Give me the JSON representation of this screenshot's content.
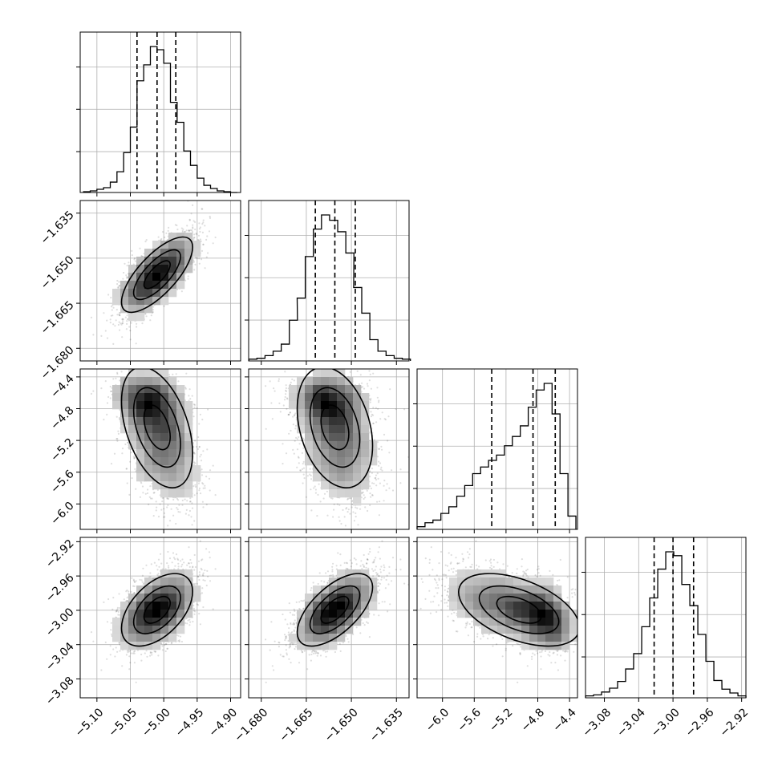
{
  "chart_data": {
    "type": "corner",
    "parameters": [
      {
        "histogram_ticks": [],
        "tick_labels": [
          "−5.10",
          "−5.05",
          "−5.00",
          "−4.95",
          "−4.90"
        ],
        "tick_values": [
          -5.1,
          -5.05,
          -5.0,
          -4.95,
          -4.9
        ],
        "range": [
          -5.125,
          -4.885
        ],
        "mean": -5.01,
        "sd": 0.028,
        "quantiles": [
          -5.04,
          -5.01,
          -4.982
        ],
        "hist_centers": [
          -5.115,
          -5.105,
          -5.095,
          -5.085,
          -5.075,
          -5.065,
          -5.055,
          -5.045,
          -5.035,
          -5.025,
          -5.015,
          -5.005,
          -4.995,
          -4.985,
          -4.975,
          -4.965,
          -4.955,
          -4.945,
          -4.935,
          -4.925,
          -4.915,
          -4.905,
          -4.895
        ],
        "hist_counts": [
          1,
          2,
          4,
          6,
          13,
          26,
          50,
          82,
          140,
          160,
          183,
          179,
          162,
          113,
          88,
          52,
          34,
          18,
          9,
          5,
          2,
          1,
          0
        ]
      },
      {
        "tick_labels": [
          "−1.680",
          "−1.665",
          "−1.650",
          "−1.635"
        ],
        "tick_values": [
          -1.68,
          -1.665,
          -1.65,
          -1.635
        ],
        "range": [
          -1.6842,
          -1.6308
        ],
        "mean": -1.6555,
        "sd": 0.0065,
        "quantiles": [
          -1.662,
          -1.6555,
          -1.6487
        ],
        "hist_centers": [
          -1.6828,
          -1.6801,
          -1.6774,
          -1.6747,
          -1.672,
          -1.6693,
          -1.6667,
          -1.664,
          -1.6613,
          -1.6586,
          -1.6559,
          -1.6532,
          -1.6505,
          -1.6479,
          -1.6452,
          -1.6425,
          -1.6398,
          -1.6371,
          -1.6344,
          -1.6317
        ],
        "hist_counts": [
          2,
          3,
          6,
          11,
          19,
          46,
          71,
          118,
          149,
          165,
          159,
          146,
          122,
          83,
          54,
          24,
          11,
          6,
          3,
          2
        ]
      },
      {
        "tick_labels": [
          "−6.0",
          "−5.6",
          "−5.2",
          "−4.8",
          "−4.4"
        ],
        "tick_values": [
          -6.0,
          -5.6,
          -5.2,
          -4.8,
          -4.4
        ],
        "range": [
          -6.32,
          -4.3
        ],
        "quantiles": [
          -5.38,
          -4.86,
          -4.58
        ],
        "hist_centers": [
          -6.27,
          -6.17,
          -6.07,
          -5.97,
          -5.87,
          -5.77,
          -5.67,
          -5.57,
          -5.47,
          -5.37,
          -5.27,
          -5.17,
          -5.07,
          -4.97,
          -4.87,
          -4.77,
          -4.67,
          -4.57,
          -4.47,
          -4.37
        ],
        "hist_counts": [
          2,
          5,
          7,
          12,
          17,
          25,
          33,
          42,
          47,
          52,
          56,
          63,
          70,
          78,
          92,
          105,
          110,
          87,
          42,
          10
        ]
      },
      {
        "tick_labels": [
          "−3.08",
          "−3.04",
          "−3.00",
          "−2.96",
          "−2.92"
        ],
        "tick_values": [
          -3.08,
          -3.04,
          -3.0,
          -2.96,
          -2.92
        ],
        "range": [
          -3.102,
          -2.915
        ],
        "mean": -2.999,
        "sd": 0.021,
        "quantiles": [
          -3.022,
          -3.0,
          -2.976
        ],
        "hist_centers": [
          -3.0973,
          -3.088,
          -3.0786,
          -3.0693,
          -3.0599,
          -3.0506,
          -3.0412,
          -3.0318,
          -3.0225,
          -3.0131,
          -3.0038,
          -2.9944,
          -2.9851,
          -2.9757,
          -2.9664,
          -2.957,
          -2.9477,
          -2.9383,
          -2.929,
          -2.9196
        ],
        "hist_counts": [
          2,
          3,
          6,
          10,
          17,
          30,
          46,
          74,
          104,
          134,
          152,
          148,
          118,
          96,
          66,
          38,
          18,
          9,
          5,
          2
        ]
      }
    ],
    "pairs": [
      {
        "x": 0,
        "y": 1,
        "correlation": 0.72
      },
      {
        "x": 0,
        "y": 2,
        "correlation": -0.45
      },
      {
        "x": 1,
        "y": 2,
        "correlation": -0.4
      },
      {
        "x": 0,
        "y": 3,
        "correlation": 0.68
      },
      {
        "x": 1,
        "y": 3,
        "correlation": 0.82
      },
      {
        "x": 2,
        "y": 3,
        "correlation": -0.62
      }
    ],
    "grid": true,
    "contour_levels": 3
  }
}
